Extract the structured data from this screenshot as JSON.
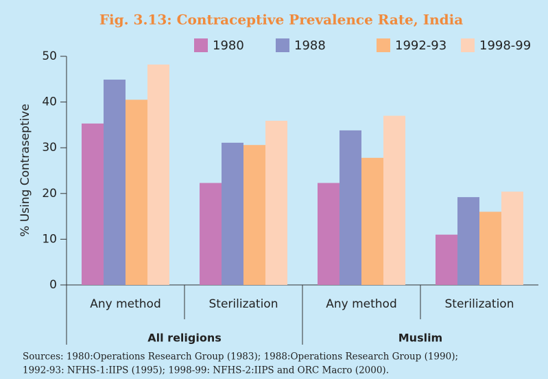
{
  "chart_data": {
    "type": "bar",
    "title": "Fig. 3.13: Contraceptive Prevalence Rate, India",
    "y_label": "% Using Contraseptive",
    "categories": [
      "Any method",
      "Sterilization",
      "Any method",
      "Sterilization"
    ],
    "groups": [
      "All religions",
      "Muslim"
    ],
    "series": [
      {
        "name": "1980",
        "color": "#c77bb8",
        "values": [
          35.3,
          22.3,
          22.3,
          11.0
        ]
      },
      {
        "name": "1988",
        "color": "#8891c8",
        "values": [
          44.9,
          31.1,
          33.8,
          19.2
        ]
      },
      {
        "name": "1992-93",
        "color": "#fbb77e",
        "values": [
          40.5,
          30.6,
          27.8,
          16.0
        ]
      },
      {
        "name": "1998-99",
        "color": "#fdd2b8",
        "values": [
          48.2,
          35.9,
          37.0,
          20.4
        ]
      }
    ],
    "ylim": [
      0,
      50
    ],
    "yticks": [
      0,
      10,
      20,
      30,
      40,
      50
    ],
    "notes": [
      "Sources: 1980:Operations Research Group (1983); 1988:Operations Research Group (1990);",
      "1992-93: NFHS-1:IIPS (1995); 1998-99: NFHS-2:IIPS and ORC Macro (2000)."
    ]
  }
}
